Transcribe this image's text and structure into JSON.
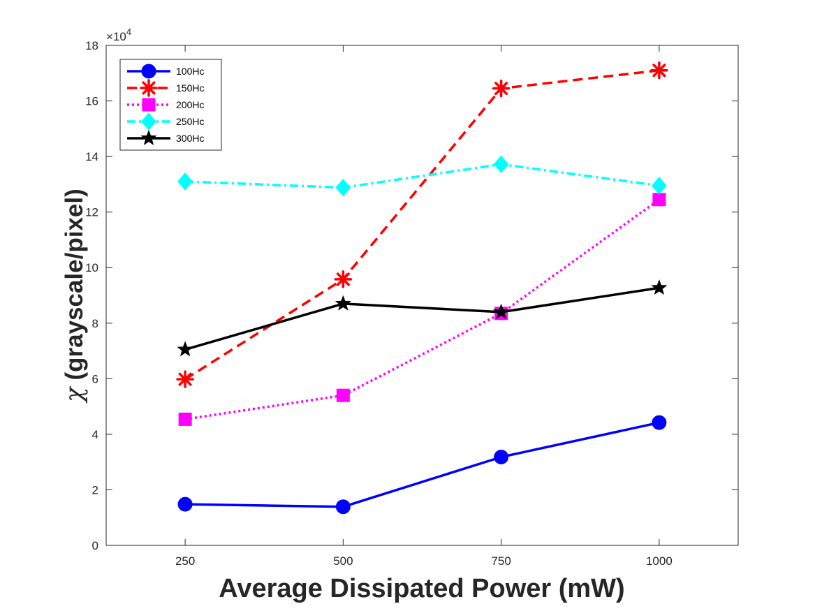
{
  "chart_data": {
    "type": "line",
    "xlabel": "Average Dissipated Power (mW)",
    "ylabel_symbol": "χ",
    "ylabel": "(grayscale/pixel)",
    "y_exponent_label": "×10",
    "y_exponent_power": "4",
    "x": [
      250,
      500,
      750,
      1000
    ],
    "x_tick_labels": [
      "250",
      "500",
      "750",
      "1000"
    ],
    "xlim": [
      125,
      1125
    ],
    "ylim": [
      0,
      18
    ],
    "y_ticks": [
      0,
      2,
      4,
      6,
      8,
      10,
      12,
      14,
      16,
      18
    ],
    "y_tick_labels": [
      "0",
      "2",
      "4",
      "6",
      "8",
      "10",
      "12",
      "14",
      "16",
      "18"
    ],
    "y_units_multiplier": 10000,
    "grid": false,
    "legend_position": "top-left",
    "series": [
      {
        "name": "100Hc",
        "values": [
          1.48,
          1.39,
          3.18,
          4.42
        ],
        "color": "#0000ff",
        "dash": "solid",
        "marker": "circle"
      },
      {
        "name": "150Hc",
        "values": [
          5.98,
          9.58,
          16.45,
          17.1
        ],
        "color": "#ff0000",
        "dash": "dashed",
        "marker": "asterisk"
      },
      {
        "name": "200Hc",
        "values": [
          4.54,
          5.4,
          8.35,
          12.45
        ],
        "color": "#ff00ff",
        "dash": "dotted",
        "marker": "square"
      },
      {
        "name": "250Hc",
        "values": [
          13.1,
          12.88,
          13.72,
          12.95
        ],
        "color": "#00ffff",
        "dash": "dashdot",
        "marker": "diamond"
      },
      {
        "name": "300Hc",
        "values": [
          7.05,
          8.7,
          8.4,
          9.27
        ],
        "color": "#000000",
        "dash": "solid",
        "marker": "star"
      }
    ]
  }
}
